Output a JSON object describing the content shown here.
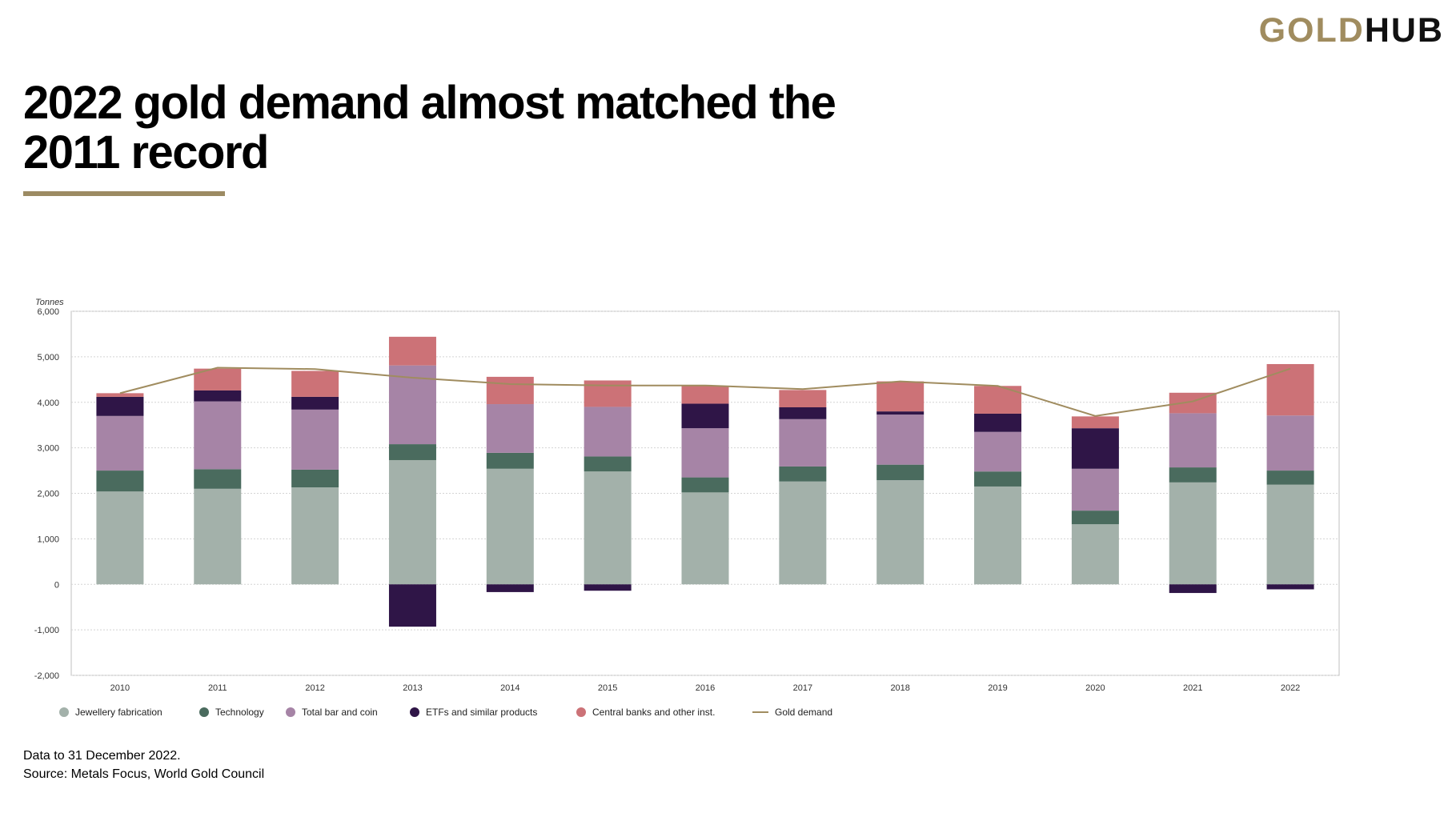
{
  "brand": {
    "gold": "GOLD",
    "hub": "HUB"
  },
  "title": "2022 gold demand almost matched the 2011 record",
  "footer": {
    "note": "Data to 31 December 2022.",
    "source": "Source: Metals Focus, World Gold Council"
  },
  "colors": {
    "brand_gold": "#a08c5f",
    "rule": "#9c8b63"
  },
  "chart_data": {
    "type": "bar",
    "stacked": true,
    "ylabel": "Tonnes",
    "ylim": [
      -2000,
      6000
    ],
    "yticks": [
      6000,
      5000,
      4000,
      3000,
      2000,
      1000,
      0,
      -1000,
      -2000
    ],
    "ytick_labels": [
      "6,000",
      "5,000",
      "4,000",
      "3,000",
      "2,000",
      "1,000",
      "0",
      "-1,000",
      "-2,000"
    ],
    "grid": true,
    "legend_position": "bottom",
    "categories": [
      "2010",
      "2011",
      "2012",
      "2013",
      "2014",
      "2015",
      "2016",
      "2017",
      "2018",
      "2019",
      "2020",
      "2021",
      "2022"
    ],
    "series": [
      {
        "name": "Jewellery fabrication",
        "color": "#a3b1aa",
        "values": [
          2040,
          2100,
          2130,
          2730,
          2540,
          2480,
          2020,
          2260,
          2290,
          2150,
          1320,
          2240,
          2190
        ]
      },
      {
        "name": "Technology",
        "color": "#4a6b5e",
        "values": [
          460,
          430,
          390,
          350,
          350,
          330,
          330,
          330,
          340,
          330,
          300,
          330,
          310
        ]
      },
      {
        "name": "Total bar and coin",
        "color": "#a684a6",
        "values": [
          1200,
          1490,
          1320,
          1730,
          1070,
          1090,
          1080,
          1040,
          1100,
          870,
          920,
          1190,
          1210
        ]
      },
      {
        "name": "ETFs and similar products",
        "color": "#2f1547",
        "values": [
          420,
          240,
          280,
          -930,
          -170,
          -140,
          540,
          260,
          70,
          400,
          890,
          -190,
          -110
        ]
      },
      {
        "name": "Central banks and other inst.",
        "color": "#cc7277",
        "values": [
          80,
          480,
          570,
          630,
          600,
          580,
          390,
          380,
          660,
          610,
          260,
          450,
          1130
        ]
      }
    ],
    "line_series": {
      "name": "Gold demand",
      "color": "#a08c5f",
      "values": [
        4200,
        4760,
        4730,
        4540,
        4400,
        4370,
        4370,
        4290,
        4460,
        4360,
        3700,
        4020,
        4740
      ]
    }
  }
}
